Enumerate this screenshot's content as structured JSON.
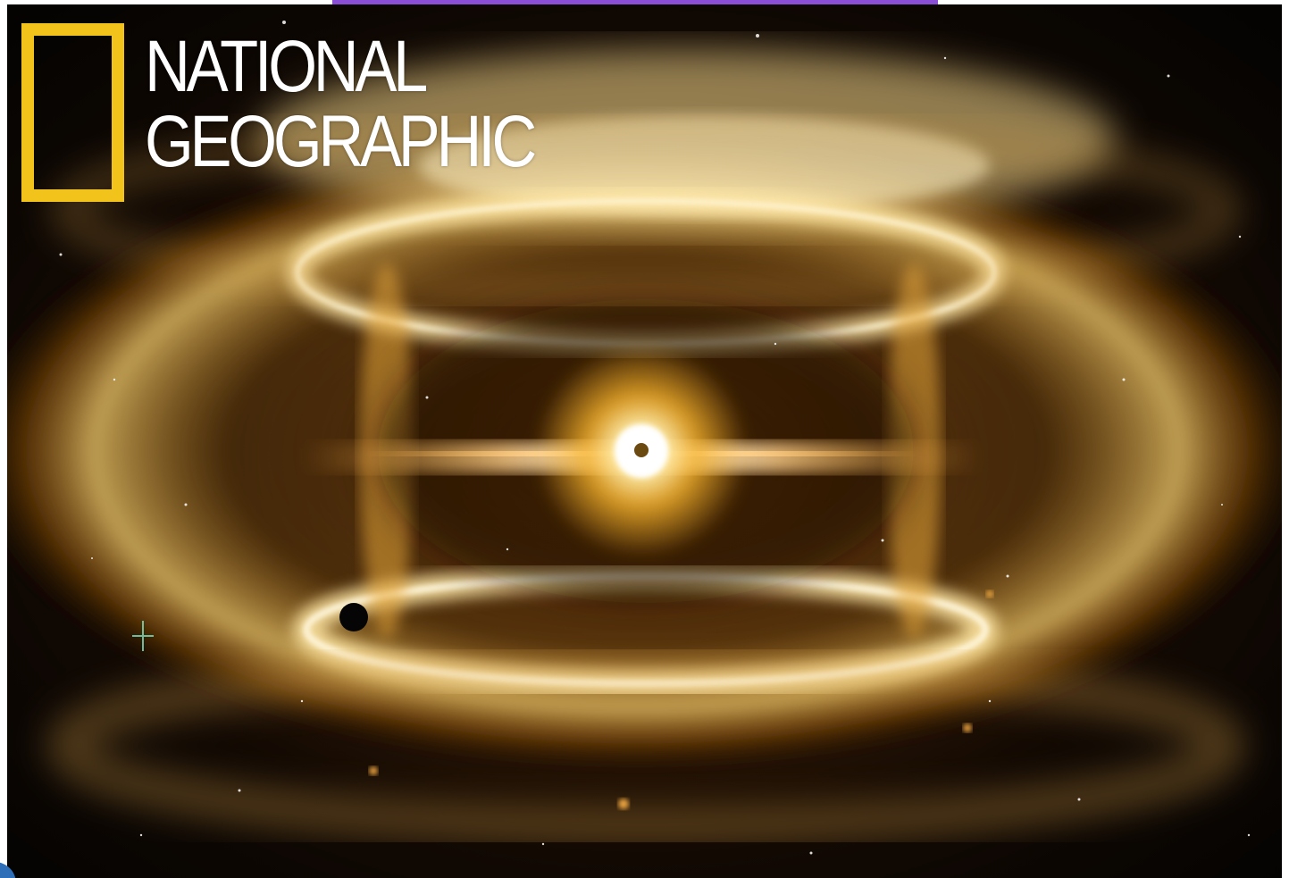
{
  "image": {
    "logo": {
      "line1": "NATIONAL",
      "line2": "GEOGRAPHIC",
      "border_color": "#f2c31b",
      "text_color": "#ffffff"
    },
    "accent_strip_color": "#8a4fd6",
    "palette": {
      "space": "#050302",
      "glow_core": "#fff7d6",
      "glow_mid": "#f4b02c",
      "glow_outer": "#8a4b0b"
    }
  }
}
